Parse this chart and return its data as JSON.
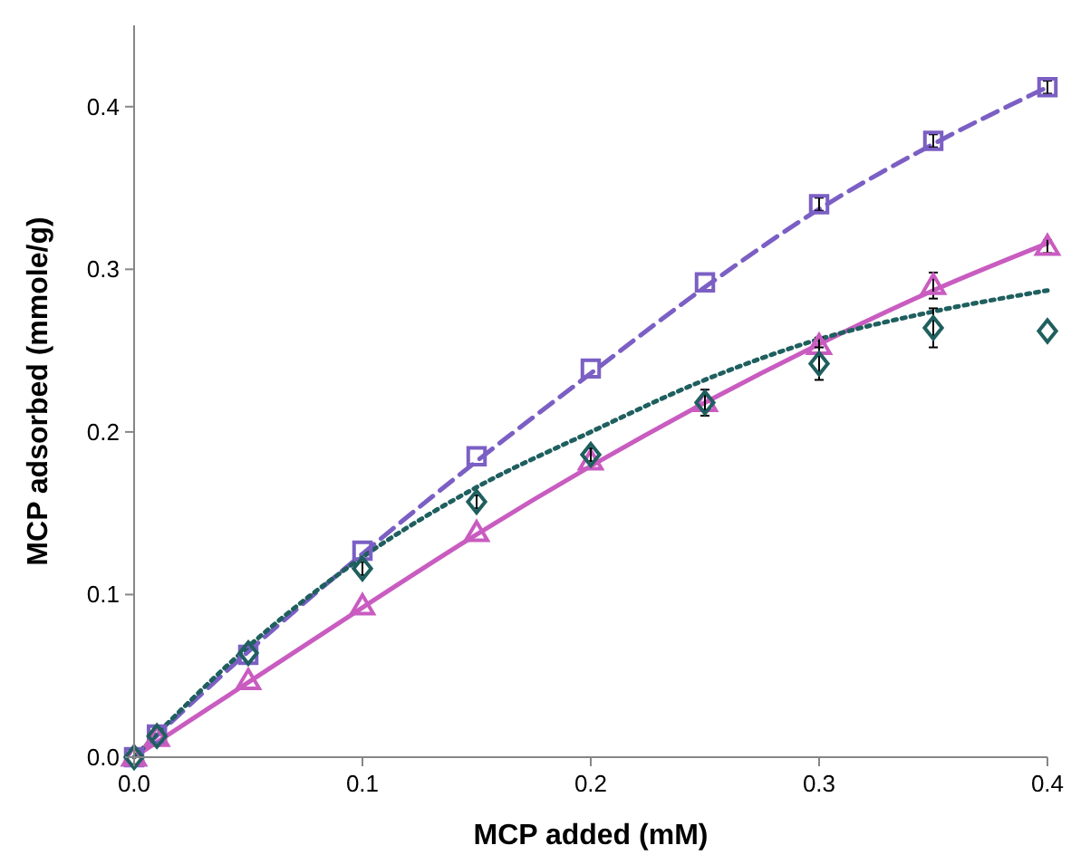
{
  "chart_data": {
    "type": "scatter",
    "xlabel": "MCP added (mM)",
    "ylabel": "MCP adsorbed (mmole/g)",
    "x": [
      0,
      0.01,
      0.05,
      0.1,
      0.15,
      0.2,
      0.25,
      0.3,
      0.35,
      0.4
    ],
    "xlim": [
      0,
      0.4
    ],
    "xticks": [
      {
        "value": 0,
        "label": "0.0"
      },
      {
        "value": 0.1,
        "label": "0.1"
      },
      {
        "value": 0.2,
        "label": "0.2"
      },
      {
        "value": 0.3,
        "label": "0.3"
      },
      {
        "value": 0.4,
        "label": "0.4"
      }
    ],
    "ylim": [
      0,
      0.45
    ],
    "yticks": [
      {
        "value": 0,
        "label": "0.0"
      },
      {
        "value": 0.1,
        "label": "0.1"
      },
      {
        "value": 0.2,
        "label": "0.2"
      },
      {
        "value": 0.3,
        "label": "0.3"
      },
      {
        "value": 0.4,
        "label": "0.4"
      }
    ],
    "grid": false,
    "series": [
      {
        "type": "line",
        "color": "#7b5fc4",
        "marker": "none",
        "line_style": "dashed",
        "x": [
          0,
          0.05,
          0.1,
          0.15,
          0.2,
          0.25,
          0.3,
          0.35,
          0.4
        ],
        "values": [
          0,
          0.065,
          0.125,
          0.182,
          0.236,
          0.289,
          0.337,
          0.377,
          0.412
        ]
      },
      {
        "type": "line",
        "color": "#c95cc0",
        "marker": "none",
        "line_style": "solid",
        "x": [
          0,
          0.05,
          0.1,
          0.15,
          0.2,
          0.25,
          0.3,
          0.35,
          0.4
        ],
        "values": [
          0,
          0.046,
          0.092,
          0.137,
          0.179,
          0.218,
          0.254,
          0.287,
          0.316
        ]
      },
      {
        "type": "line",
        "color": "#1f5f5f",
        "marker": "none",
        "line_style": "dotted",
        "x": [
          0,
          0.05,
          0.1,
          0.15,
          0.2,
          0.25,
          0.3,
          0.35,
          0.4
        ],
        "values": [
          0,
          0.068,
          0.123,
          0.166,
          0.2,
          0.232,
          0.257,
          0.274,
          0.287
        ]
      },
      {
        "color": "#7b5fc4",
        "marker": "square",
        "values": [
          0,
          0.014,
          0.063,
          0.127,
          0.185,
          0.239,
          0.292,
          0.34,
          0.379,
          0.412
        ],
        "errors": [
          null,
          null,
          null,
          null,
          null,
          null,
          null,
          0.004,
          0.004,
          0.004
        ]
      },
      {
        "color": "#c95cc0",
        "marker": "triangle",
        "values": [
          0,
          0.012,
          0.047,
          0.093,
          0.138,
          0.182,
          0.218,
          0.253,
          0.29,
          0.314
        ],
        "errors": [
          null,
          null,
          null,
          null,
          null,
          null,
          null,
          0.005,
          0.008,
          0.004
        ]
      },
      {
        "color": "#1f5f5f",
        "marker": "diamond",
        "values": [
          0,
          0.013,
          0.064,
          0.116,
          0.157,
          0.186,
          0.218,
          0.242,
          0.264,
          0.262
        ],
        "errors": [
          null,
          null,
          null,
          0.004,
          0.004,
          0.004,
          0.008,
          0.01,
          0.012,
          null
        ]
      }
    ]
  }
}
